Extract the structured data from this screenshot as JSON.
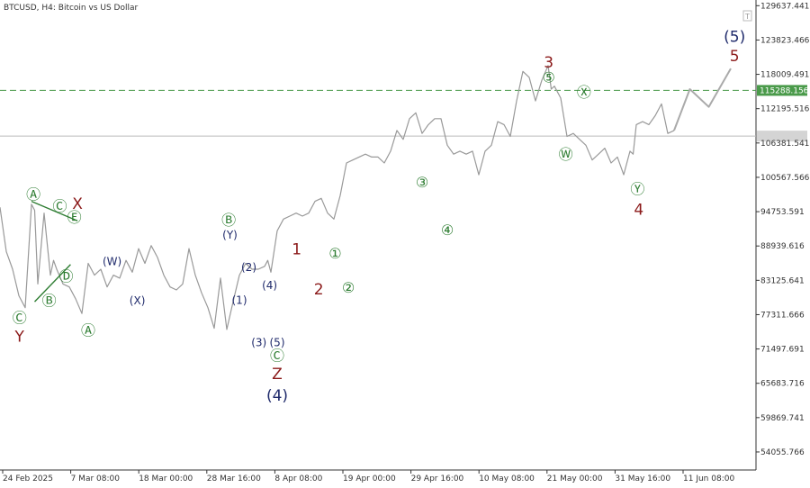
{
  "header": {
    "title": "BTCUSD, H4:  Bitcoin vs US Dollar"
  },
  "chart_data": {
    "type": "line",
    "symbol": "BTCUSD",
    "timeframe": "H4",
    "description": "Bitcoin vs US Dollar",
    "x_ticks": [
      "24 Feb 2025",
      "7 Mar 08:00",
      "18 Mar 00:00",
      "28 Mar 16:00",
      "8 Apr 08:00",
      "19 Apr 00:00",
      "29 Apr 16:00",
      "10 May 08:00",
      "21 May 00:00",
      "31 May 16:00",
      "11 Jun 08:00"
    ],
    "y_ticks": [
      129637.441,
      123823.466,
      118009.491,
      112195.516,
      106381.541,
      100567.566,
      94753.591,
      88939.616,
      83125.641,
      77311.666,
      71497.691,
      65683.716,
      59869.741,
      54055.766
    ],
    "y_tick_labels": [
      "129637.441",
      "123823.466",
      "118009.491",
      "112195.516",
      "106381.541",
      "100567.566",
      "94753.591",
      "88939.616",
      "83125.641",
      "77311.666",
      "71497.691",
      "65683.716",
      "59869.741",
      "54055.766"
    ],
    "ylim": [
      51000,
      130600
    ],
    "x_domain": [
      0,
      120
    ],
    "series": [
      {
        "role": "price",
        "color": "#999999",
        "x": [
          0,
          1,
          2,
          3,
          4,
          5,
          5.5,
          6,
          7,
          8,
          8.5,
          9,
          10,
          11,
          12,
          13,
          14,
          15,
          16,
          17,
          18,
          19,
          20,
          21,
          22,
          23,
          24,
          25,
          26,
          27,
          28,
          29,
          30,
          31,
          32,
          33,
          34,
          35,
          36,
          37,
          38,
          39,
          40,
          41,
          42,
          42.5,
          43,
          44,
          45,
          46,
          47,
          48,
          49,
          50,
          51,
          52,
          53,
          54,
          55,
          56,
          57,
          58,
          59,
          60,
          61,
          62,
          63,
          64,
          65,
          66,
          67,
          68,
          69,
          70,
          71,
          72,
          73,
          74,
          75,
          76,
          77,
          78,
          79,
          80,
          81,
          82,
          83,
          84,
          85,
          86,
          87,
          87.5,
          88,
          89,
          90,
          91,
          92,
          93,
          94,
          95,
          96,
          97,
          98,
          99,
          100,
          100.5,
          101,
          102,
          103,
          104,
          105,
          106,
          107
        ],
        "y": [
          95500,
          88000,
          85000,
          80500,
          78500,
          96000,
          95000,
          82500,
          94500,
          84000,
          86500,
          85000,
          82500,
          82000,
          80000,
          77500,
          86000,
          84000,
          85000,
          82000,
          84000,
          83500,
          86500,
          84500,
          88500,
          86000,
          89000,
          87000,
          84000,
          82000,
          81500,
          82500,
          88500,
          84000,
          81000,
          78500,
          75000,
          83500,
          74800,
          79500,
          84000,
          86000,
          85000,
          85000,
          85500,
          86500,
          84500,
          91500,
          93500,
          94000,
          94500,
          94000,
          94500,
          96500,
          97000,
          94500,
          93500,
          97500,
          103000,
          103500,
          104000,
          104500,
          104000,
          104000,
          103000,
          105000,
          108500,
          107000,
          110500,
          111500,
          108000,
          109500,
          110500,
          110500,
          106000,
          104500,
          105000,
          104500,
          105000,
          101000,
          105000,
          106000,
          110000,
          109500,
          107500,
          113500,
          118500,
          117500,
          113500,
          117000,
          119500,
          115500,
          116000,
          114000,
          107500,
          108000,
          107000,
          106000,
          103500,
          104500,
          105500,
          103000,
          104000,
          101000,
          105000,
          104500,
          109500,
          110000,
          109500,
          111000,
          113000,
          108000,
          108500
        ]
      },
      {
        "role": "projection",
        "color": "#aaaaaa",
        "x": [
          107,
          109.5,
          112.5,
          116
        ],
        "y": [
          108500,
          115500,
          112500,
          119000
        ]
      }
    ],
    "horizontal_lines": [
      {
        "value": 115288.156,
        "label": "115288.156",
        "style": "dashed",
        "color": "#4a9a4a"
      },
      {
        "value": 107560,
        "label": "",
        "style": "solid",
        "color": "#bbbbbb"
      }
    ],
    "annotations": [
      {
        "text": "Ⓐ",
        "x": 5.3,
        "y": 97500,
        "color": "#2e7d32"
      },
      {
        "text": "Ⓒ",
        "x": 9.5,
        "y": 95500,
        "color": "#2e7d32"
      },
      {
        "text": "Ⓔ",
        "x": 11.8,
        "y": 93600,
        "color": "#2e7d32"
      },
      {
        "text": "X",
        "x": 12.3,
        "y": 96000,
        "color": "#8b1a1a"
      },
      {
        "text": "Ⓓ",
        "x": 10.5,
        "y": 83600,
        "color": "#2e7d32"
      },
      {
        "text": "Ⓑ",
        "x": 7.8,
        "y": 79500,
        "color": "#2e7d32"
      },
      {
        "text": "Ⓒ",
        "x": 3.1,
        "y": 76600,
        "color": "#2e7d32"
      },
      {
        "text": "Y",
        "x": 3.1,
        "y": 73500,
        "color": "#8b1a1a"
      },
      {
        "text": "Ⓐ",
        "x": 14.0,
        "y": 74500,
        "color": "#2e7d32"
      },
      {
        "text": "(W)",
        "x": 17.8,
        "y": 86200,
        "color": "#1f2a6b"
      },
      {
        "text": "(X)",
        "x": 21.8,
        "y": 79600,
        "color": "#1f2a6b"
      },
      {
        "text": "Ⓑ",
        "x": 36.3,
        "y": 93200,
        "color": "#2e7d32"
      },
      {
        "text": "(Y)",
        "x": 36.5,
        "y": 90700,
        "color": "#1f2a6b"
      },
      {
        "text": "(2)",
        "x": 39.5,
        "y": 85200,
        "color": "#1f2a6b"
      },
      {
        "text": "(1)",
        "x": 38.0,
        "y": 79700,
        "color": "#1f2a6b"
      },
      {
        "text": "(4)",
        "x": 42.8,
        "y": 82200,
        "color": "#1f2a6b"
      },
      {
        "text": "(3)",
        "x": 41.1,
        "y": 72500,
        "color": "#1f2a6b"
      },
      {
        "text": "(5)",
        "x": 44.0,
        "y": 72500,
        "color": "#1f2a6b"
      },
      {
        "text": "Ⓒ",
        "x": 44.0,
        "y": 70200,
        "color": "#2e7d32"
      },
      {
        "text": "Z",
        "x": 44.0,
        "y": 67200,
        "color": "#8b1a1a"
      },
      {
        "text": "(4)",
        "x": 44.0,
        "y": 63500,
        "color": "#1f2a6b"
      },
      {
        "text": "1",
        "x": 47.1,
        "y": 88300,
        "color": "#8b1a1a"
      },
      {
        "text": "2",
        "x": 50.6,
        "y": 81500,
        "color": "#8b1a1a"
      },
      {
        "text": "①",
        "x": 53.2,
        "y": 87500,
        "color": "#2e7d32"
      },
      {
        "text": "②",
        "x": 55.3,
        "y": 81700,
        "color": "#2e7d32"
      },
      {
        "text": "③",
        "x": 67.0,
        "y": 99600,
        "color": "#2e7d32"
      },
      {
        "text": "④",
        "x": 71.0,
        "y": 91500,
        "color": "#2e7d32"
      },
      {
        "text": "3",
        "x": 87.1,
        "y": 119900,
        "color": "#8b1a1a"
      },
      {
        "text": "⑤",
        "x": 87.1,
        "y": 117300,
        "color": "#2e7d32"
      },
      {
        "text": "Ⓧ",
        "x": 92.7,
        "y": 114800,
        "color": "#2e7d32"
      },
      {
        "text": "Ⓦ",
        "x": 89.8,
        "y": 104300,
        "color": "#2e7d32"
      },
      {
        "text": "Ⓨ",
        "x": 101.2,
        "y": 98400,
        "color": "#2e7d32"
      },
      {
        "text": "4",
        "x": 101.4,
        "y": 95000,
        "color": "#8b1a1a"
      },
      {
        "text": "(5)",
        "x": 116.6,
        "y": 124300,
        "color": "#1f2a6b"
      },
      {
        "text": "5",
        "x": 116.6,
        "y": 121000,
        "color": "#8b1a1a"
      }
    ],
    "trendlines": [
      {
        "color": "#2e7d32",
        "points": [
          [
            5.0,
            96500
          ],
          [
            12.3,
            93200
          ]
        ]
      },
      {
        "color": "#2e7d32",
        "points": [
          [
            5.5,
            79500
          ],
          [
            11.2,
            85800
          ]
        ]
      }
    ],
    "grid": false,
    "legend": "none"
  }
}
